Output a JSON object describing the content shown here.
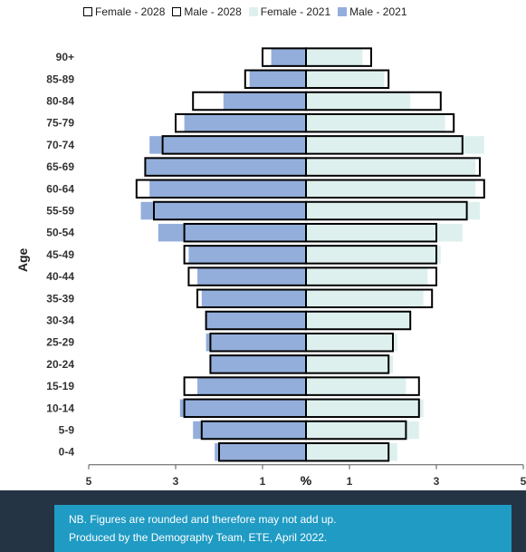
{
  "chart_data": {
    "type": "bar",
    "orientation": "horizontal-population-pyramid",
    "ylabel": "Age",
    "xlabel": "%",
    "x_ticks": [
      "5",
      "3",
      "1",
      "1",
      "3",
      "5"
    ],
    "xlim": [
      -5,
      5
    ],
    "categories": [
      "90+",
      "85-89",
      "80-84",
      "75-79",
      "70-74",
      "65-69",
      "60-64",
      "55-59",
      "50-54",
      "45-49",
      "40-44",
      "35-39",
      "30-34",
      "25-29",
      "20-24",
      "15-19",
      "10-14",
      "5-9",
      "0-4"
    ],
    "series": [
      {
        "name": "Female - 2028",
        "side": "right",
        "style": "outline",
        "values": [
          1.5,
          1.9,
          3.1,
          3.4,
          3.6,
          4.0,
          4.1,
          3.7,
          3.0,
          3.0,
          3.0,
          2.9,
          2.4,
          2.0,
          1.9,
          2.6,
          2.6,
          2.3,
          1.9
        ]
      },
      {
        "name": "Male - 2028",
        "side": "left",
        "style": "outline",
        "values": [
          1.0,
          1.4,
          2.6,
          3.0,
          3.3,
          3.7,
          3.9,
          3.5,
          2.8,
          2.8,
          2.7,
          2.5,
          2.3,
          2.2,
          2.2,
          2.8,
          2.8,
          2.4,
          2.0
        ]
      },
      {
        "name": "Female - 2021",
        "side": "right",
        "style": "fill",
        "values": [
          1.3,
          1.8,
          2.4,
          3.2,
          4.1,
          3.9,
          3.9,
          4.0,
          3.6,
          3.1,
          2.8,
          2.7,
          2.4,
          2.1,
          2.0,
          2.3,
          2.7,
          2.6,
          2.1
        ]
      },
      {
        "name": "Male - 2021",
        "side": "left",
        "style": "fill",
        "values": [
          0.8,
          1.3,
          1.9,
          2.8,
          3.6,
          3.7,
          3.6,
          3.8,
          3.4,
          2.7,
          2.5,
          2.4,
          2.3,
          2.3,
          2.2,
          2.5,
          2.9,
          2.6,
          2.1
        ]
      }
    ],
    "colors": {
      "female_2021": "#ddf0ee",
      "male_2021": "#93aedb",
      "outline": "#000000",
      "axis": "#555555"
    }
  },
  "footer": {
    "note_line1": "NB. Figures are rounded and therefore may not add up.",
    "note_line2": "Produced by the Demography Team, ETE, April 2022."
  }
}
